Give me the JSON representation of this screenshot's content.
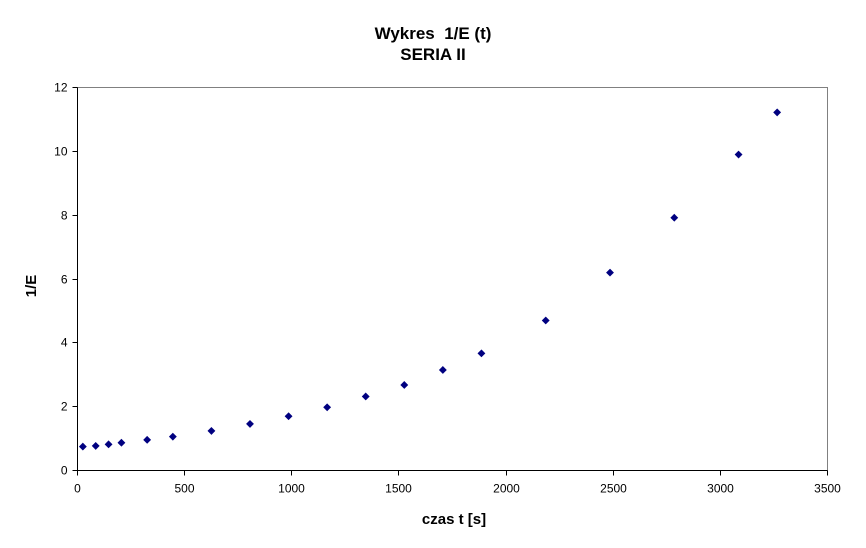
{
  "chart_data": {
    "type": "scatter",
    "title": "Wykres  1/E (t)",
    "subtitle": "SERIA II",
    "xlabel": "czas t [s]",
    "ylabel": "1/E",
    "xlim": [
      0,
      3500
    ],
    "ylim": [
      0,
      12
    ],
    "xticks": [
      0,
      500,
      1000,
      1500,
      2000,
      2500,
      3000,
      3500
    ],
    "yticks": [
      0,
      2,
      4,
      6,
      8,
      10,
      12
    ],
    "grid": false,
    "legend": "none",
    "marker": "diamond",
    "marker_color": "#000080",
    "points": [
      {
        "x": 25,
        "y": 0.75
      },
      {
        "x": 85,
        "y": 0.77
      },
      {
        "x": 145,
        "y": 0.82
      },
      {
        "x": 205,
        "y": 0.87
      },
      {
        "x": 325,
        "y": 0.96
      },
      {
        "x": 445,
        "y": 1.06
      },
      {
        "x": 625,
        "y": 1.24
      },
      {
        "x": 805,
        "y": 1.46
      },
      {
        "x": 985,
        "y": 1.7
      },
      {
        "x": 1165,
        "y": 1.98
      },
      {
        "x": 1345,
        "y": 2.32
      },
      {
        "x": 1525,
        "y": 2.68
      },
      {
        "x": 1705,
        "y": 3.15
      },
      {
        "x": 1885,
        "y": 3.67
      },
      {
        "x": 2185,
        "y": 4.7
      },
      {
        "x": 2485,
        "y": 6.2
      },
      {
        "x": 2785,
        "y": 7.92
      },
      {
        "x": 3085,
        "y": 9.9
      },
      {
        "x": 3265,
        "y": 11.22
      }
    ]
  }
}
